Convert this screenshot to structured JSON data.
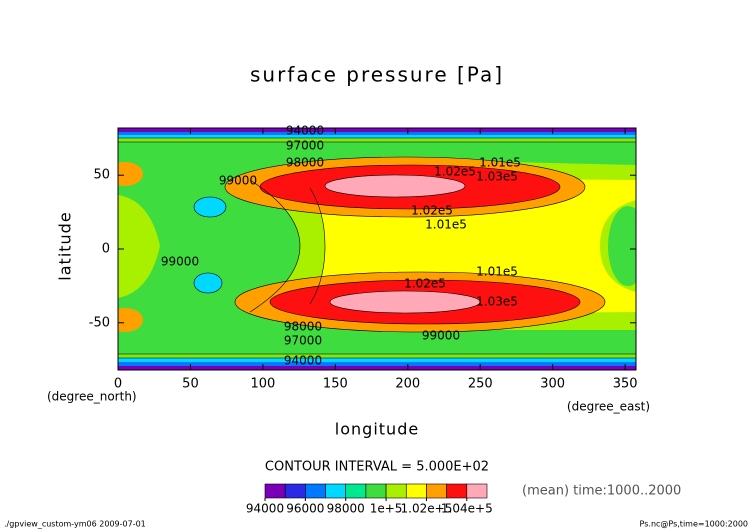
{
  "chart_data": {
    "type": "contour",
    "title": "surface pressure [Pa]",
    "xlabel": "longitude",
    "ylabel": "latitude",
    "xunit": "(degree_east)",
    "yunit": "(degree_north)",
    "xlim": [
      0,
      357.5
    ],
    "ylim": [
      -82,
      82
    ],
    "xticks": [
      0,
      50,
      100,
      150,
      200,
      250,
      300,
      350
    ],
    "yticks": [
      -50,
      0,
      50
    ],
    "contour_labels": [
      94000,
      97000,
      98000,
      99000,
      {
        "value": 102000,
        "label": "1.02e5"
      },
      {
        "value": 101000,
        "label": "1.01e5"
      },
      {
        "value": 103000,
        "label": "1.03e5"
      },
      {
        "value": 102000,
        "label": "1.02e5"
      },
      {
        "value": 101000,
        "label": "1.01e5"
      },
      99000,
      {
        "value": 101000,
        "label": "1.01e5"
      },
      {
        "value": 102000,
        "label": "1.02e5"
      },
      {
        "value": 103000,
        "label": "1.03e5"
      },
      98000,
      99000,
      97000,
      94000
    ],
    "contour_interval": "CONTOUR INTERVAL = 5.000E+02",
    "note": "(mean) time:1000..2000",
    "footer_left": "./gpview_custom-ym06  2009-07-01",
    "footer_right": "Ps.nc@Ps,time=1000:2000",
    "colorbar": {
      "lim": [
        94000,
        105000
      ],
      "levels": [
        94000,
        95000,
        96000,
        97000,
        98000,
        99000,
        100000,
        101000,
        102000,
        103000,
        104000,
        105000
      ],
      "colors": [
        "#7a00b8",
        "#2a2ae6",
        "#0078ff",
        "#00d8ff",
        "#00e890",
        "#3fdc3f",
        "#a8f000",
        "#ffff00",
        "#ffa000",
        "#ff1010",
        "#ffa8b8"
      ],
      "ticks": [
        94000,
        96000,
        98000,
        {
          "value": 100000,
          "label": "1e+5"
        },
        {
          "value": 102000,
          "label": "1.02e+5"
        },
        {
          "value": 104000,
          "label": "1.04e+5"
        }
      ]
    }
  }
}
